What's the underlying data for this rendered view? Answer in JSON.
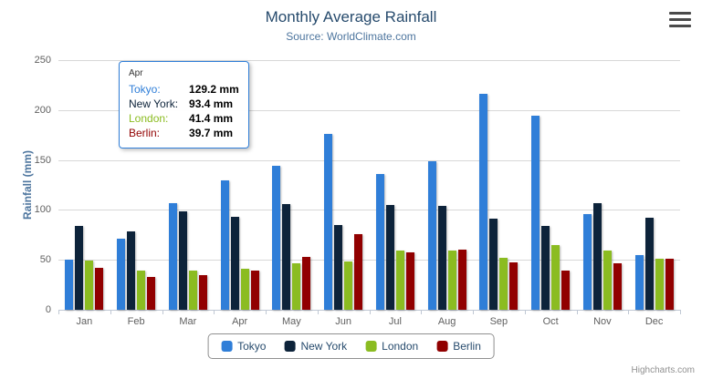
{
  "chart_data": {
    "type": "bar",
    "title": "Monthly Average Rainfall",
    "subtitle": "Source: WorldClimate.com",
    "categories": [
      "Jan",
      "Feb",
      "Mar",
      "Apr",
      "May",
      "Jun",
      "Jul",
      "Aug",
      "Sep",
      "Oct",
      "Nov",
      "Dec"
    ],
    "series": [
      {
        "name": "Tokyo",
        "color": "#2f7ed8",
        "values": [
          49.9,
          71.5,
          106.4,
          129.2,
          144.0,
          176.0,
          135.6,
          148.5,
          216.4,
          194.1,
          95.6,
          54.4
        ]
      },
      {
        "name": "New York",
        "color": "#0d233a",
        "values": [
          83.6,
          78.8,
          98.5,
          93.4,
          106.0,
          84.5,
          105.0,
          104.3,
          91.2,
          83.5,
          106.6,
          92.3
        ]
      },
      {
        "name": "London",
        "color": "#8bbc21",
        "values": [
          48.9,
          38.8,
          39.3,
          41.4,
          47.0,
          48.3,
          59.0,
          59.6,
          52.4,
          65.2,
          59.3,
          51.2
        ]
      },
      {
        "name": "Berlin",
        "color": "#910000",
        "values": [
          42.4,
          33.2,
          34.5,
          39.7,
          52.6,
          75.5,
          57.4,
          60.4,
          47.6,
          39.1,
          46.8,
          51.1
        ]
      }
    ],
    "xlabel": "",
    "ylabel": "Rainfall (mm)",
    "ylim": [
      0,
      250
    ],
    "yticks": [
      0,
      50,
      100,
      150,
      200,
      250
    ],
    "grid": true,
    "legend_position": "bottom"
  },
  "tooltip": {
    "header": "Apr",
    "rows": [
      {
        "label": "Tokyo:",
        "value": "129.2 mm"
      },
      {
        "label": "New York:",
        "value": "93.4 mm"
      },
      {
        "label": "London:",
        "value": "41.4 mm"
      },
      {
        "label": "Berlin:",
        "value": "39.7 mm"
      }
    ]
  },
  "credits": {
    "label": "Highcharts.com"
  }
}
